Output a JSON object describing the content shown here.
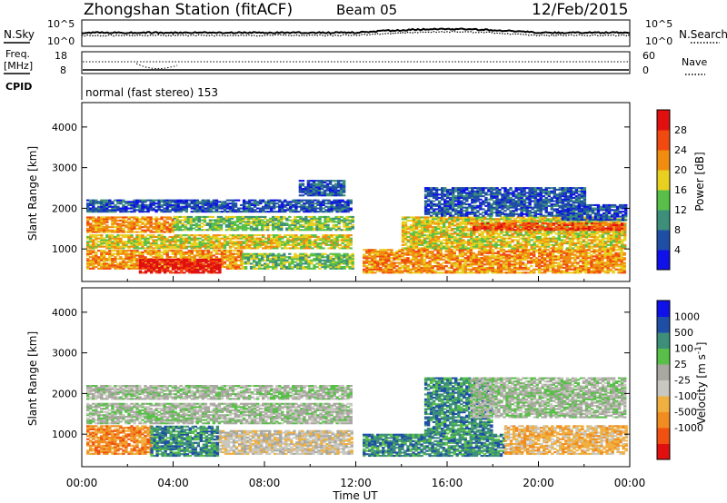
{
  "header": {
    "station": "Zhongshan Station (fitACF)",
    "beam": "Beam 05",
    "date": "12/Feb/2015"
  },
  "status_panels": {
    "nsky_label": "N.Sky",
    "nsky_ticks": [
      "10^5",
      "10^0"
    ],
    "nsearch_label": "N.Search",
    "nsearch_ticks": [
      "10^5",
      "10^0"
    ],
    "freq_label_1": "Freq.",
    "freq_label_2": "[MHz]",
    "freq_ticks": [
      "18",
      "8"
    ],
    "nave_label": "Nave",
    "nave_ticks": [
      "60",
      "0"
    ],
    "cpid_label": "CPID",
    "cpid_text": "normal (fast stereo) 153"
  },
  "colors": {
    "power": [
      "#1010e8",
      "#1e4ea6",
      "#3d8f7a",
      "#58c048",
      "#e8d020",
      "#f08c10",
      "#f04a10",
      "#e01010"
    ],
    "velocity": [
      "#e01010",
      "#f05010",
      "#f08c20",
      "#f0b040",
      "#c8c8c0",
      "#a8a8a0",
      "#58c048",
      "#3d8f7a",
      "#1e4ea6",
      "#1010e8"
    ]
  },
  "chart_data": [
    {
      "type": "heatmap",
      "panel": "power",
      "ylabel": "Slant Range [km]",
      "yticks": [
        "1000",
        "2000",
        "3000",
        "4000"
      ],
      "ylim": [
        200,
        4600
      ],
      "xticks": [
        "00:00",
        "04:00",
        "08:00",
        "12:00",
        "16:00",
        "20:00",
        "00:00"
      ],
      "xlim_hours": [
        0,
        24
      ],
      "colorbar_label": "Power [dB]",
      "colorbar_ticks": [
        "4",
        "8",
        "12",
        "16",
        "20",
        "24",
        "28"
      ],
      "bands": [
        {
          "t0": 0.2,
          "t1": 4.0,
          "r0": 1400,
          "r1": 1800,
          "level": 5
        },
        {
          "t0": 4.0,
          "t1": 11.8,
          "r0": 1450,
          "r1": 1800,
          "level": 3
        },
        {
          "t0": 0.2,
          "t1": 11.8,
          "r0": 1000,
          "r1": 1350,
          "level": 4
        },
        {
          "t0": 0.2,
          "t1": 7.0,
          "r0": 500,
          "r1": 950,
          "level": 5
        },
        {
          "t0": 2.5,
          "t1": 6.0,
          "r0": 400,
          "r1": 750,
          "level": 7
        },
        {
          "t0": 7.0,
          "t1": 11.8,
          "r0": 500,
          "r1": 900,
          "level": 3
        },
        {
          "t0": 0.2,
          "t1": 11.8,
          "r0": 1900,
          "r1": 2200,
          "level": 1
        },
        {
          "t0": 9.5,
          "t1": 11.5,
          "r0": 2300,
          "r1": 2700,
          "level": 1
        },
        {
          "t0": 12.3,
          "t1": 23.8,
          "r0": 400,
          "r1": 1000,
          "level": 5
        },
        {
          "t0": 14.0,
          "t1": 23.8,
          "r0": 1000,
          "r1": 1800,
          "level": 4
        },
        {
          "t0": 17.0,
          "t1": 23.8,
          "r0": 1450,
          "r1": 1650,
          "level": 6
        },
        {
          "t0": 15.0,
          "t1": 22.0,
          "r0": 1800,
          "r1": 2500,
          "level": 1
        },
        {
          "t0": 21.0,
          "t1": 23.8,
          "r0": 1700,
          "r1": 2100,
          "level": 1
        }
      ]
    },
    {
      "type": "heatmap",
      "panel": "velocity",
      "ylabel": "Slant Range [km]",
      "yticks": [
        "1000",
        "2000",
        "3000",
        "4000"
      ],
      "ylim": [
        200,
        4600
      ],
      "xticks": [
        "00:00",
        "04:00",
        "08:00",
        "12:00",
        "16:00",
        "20:00",
        "00:00"
      ],
      "xlim_hours": [
        0,
        24
      ],
      "xlabel": "Time UT",
      "colorbar_label": "Velocity [m s^-1]",
      "colorbar_ticks": [
        "1000",
        "500",
        "100",
        "25",
        "-25",
        "-100",
        "-500",
        "-1000"
      ],
      "bands": [
        {
          "t0": 0.2,
          "t1": 11.8,
          "r0": 1250,
          "r1": 1750,
          "level": 4
        },
        {
          "t0": 0.2,
          "t1": 3.0,
          "r0": 500,
          "r1": 1200,
          "level": 7
        },
        {
          "t0": 3.0,
          "t1": 6.0,
          "r0": 450,
          "r1": 1200,
          "level": 2
        },
        {
          "t0": 6.0,
          "t1": 11.8,
          "r0": 500,
          "r1": 1100,
          "level": 5
        },
        {
          "t0": 12.3,
          "t1": 18.5,
          "r0": 450,
          "r1": 1000,
          "level": 2
        },
        {
          "t0": 15.0,
          "t1": 18.0,
          "r0": 1000,
          "r1": 2400,
          "level": 2
        },
        {
          "t0": 18.5,
          "t1": 23.8,
          "r0": 500,
          "r1": 1200,
          "level": 6
        },
        {
          "t0": 17.0,
          "t1": 23.8,
          "r0": 1400,
          "r1": 2400,
          "level": 4
        },
        {
          "t0": 0.2,
          "t1": 11.8,
          "r0": 1850,
          "r1": 2200,
          "level": 4
        }
      ]
    }
  ]
}
